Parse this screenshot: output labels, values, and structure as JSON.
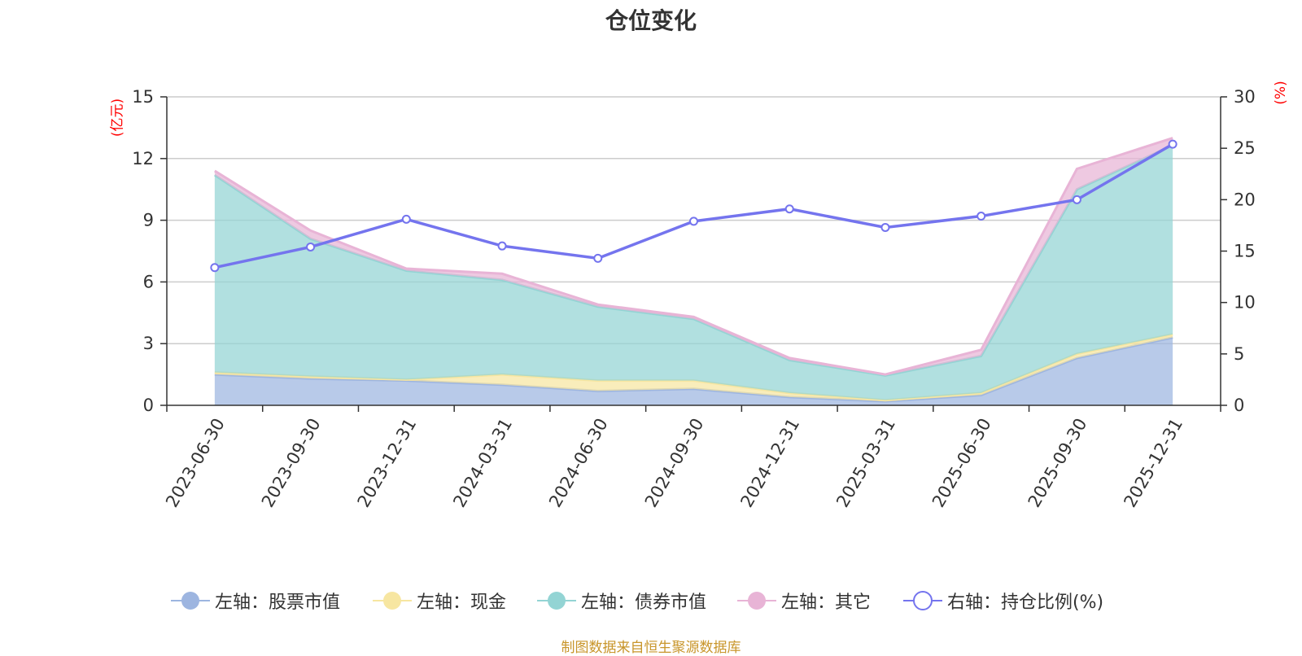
{
  "chart_data": {
    "type": "area",
    "title": "仓位变化",
    "left_axis_unit": "(亿元)",
    "right_axis_unit": "(%)",
    "left_ylim": [
      0,
      15
    ],
    "left_ticks": [
      "0",
      "3",
      "6",
      "9",
      "12",
      "15"
    ],
    "right_ylim": [
      0,
      30
    ],
    "right_ticks": [
      "0",
      "5",
      "10",
      "15",
      "20",
      "25",
      "30"
    ],
    "grid": true,
    "legend_position": "bottom",
    "categories": [
      "2023-06-30",
      "2023-09-30",
      "2023-12-31",
      "2024-03-31",
      "2024-06-30",
      "2024-09-30",
      "2024-12-31",
      "2025-03-31",
      "2025-06-30",
      "2025-09-30",
      "2025-12-31"
    ],
    "series": [
      {
        "name": "左轴：股票市值",
        "axis": "left",
        "kind": "stacked-area",
        "color": "#9db5e0",
        "values": [
          1.5,
          1.3,
          1.2,
          1.0,
          0.7,
          0.8,
          0.4,
          0.2,
          0.5,
          2.3,
          3.3
        ]
      },
      {
        "name": "左轴：现金",
        "axis": "left",
        "kind": "stacked-area",
        "color": "#f7e6a1",
        "values": [
          0.1,
          0.1,
          0.05,
          0.5,
          0.5,
          0.4,
          0.2,
          0.05,
          0.1,
          0.2,
          0.15
        ]
      },
      {
        "name": "左轴：债券市值",
        "axis": "left",
        "kind": "stacked-area",
        "color": "#93d4d4",
        "values": [
          9.6,
          6.7,
          5.3,
          4.6,
          3.6,
          3.0,
          1.6,
          1.2,
          1.8,
          8.0,
          9.2
        ]
      },
      {
        "name": "左轴：其它",
        "axis": "left",
        "kind": "stacked-area",
        "color": "#e8b4d6",
        "values": [
          0.2,
          0.4,
          0.1,
          0.3,
          0.1,
          0.1,
          0.1,
          0.05,
          0.3,
          1.0,
          0.35
        ]
      },
      {
        "name": "右轴：持仓比例(%)",
        "axis": "right",
        "kind": "line",
        "color": "#7474ee",
        "values": [
          13.4,
          15.4,
          18.1,
          15.5,
          14.3,
          17.9,
          19.1,
          17.3,
          18.4,
          20.0,
          25.4
        ]
      }
    ]
  },
  "footer": {
    "source": "制图数据来自恒生聚源数据库"
  }
}
